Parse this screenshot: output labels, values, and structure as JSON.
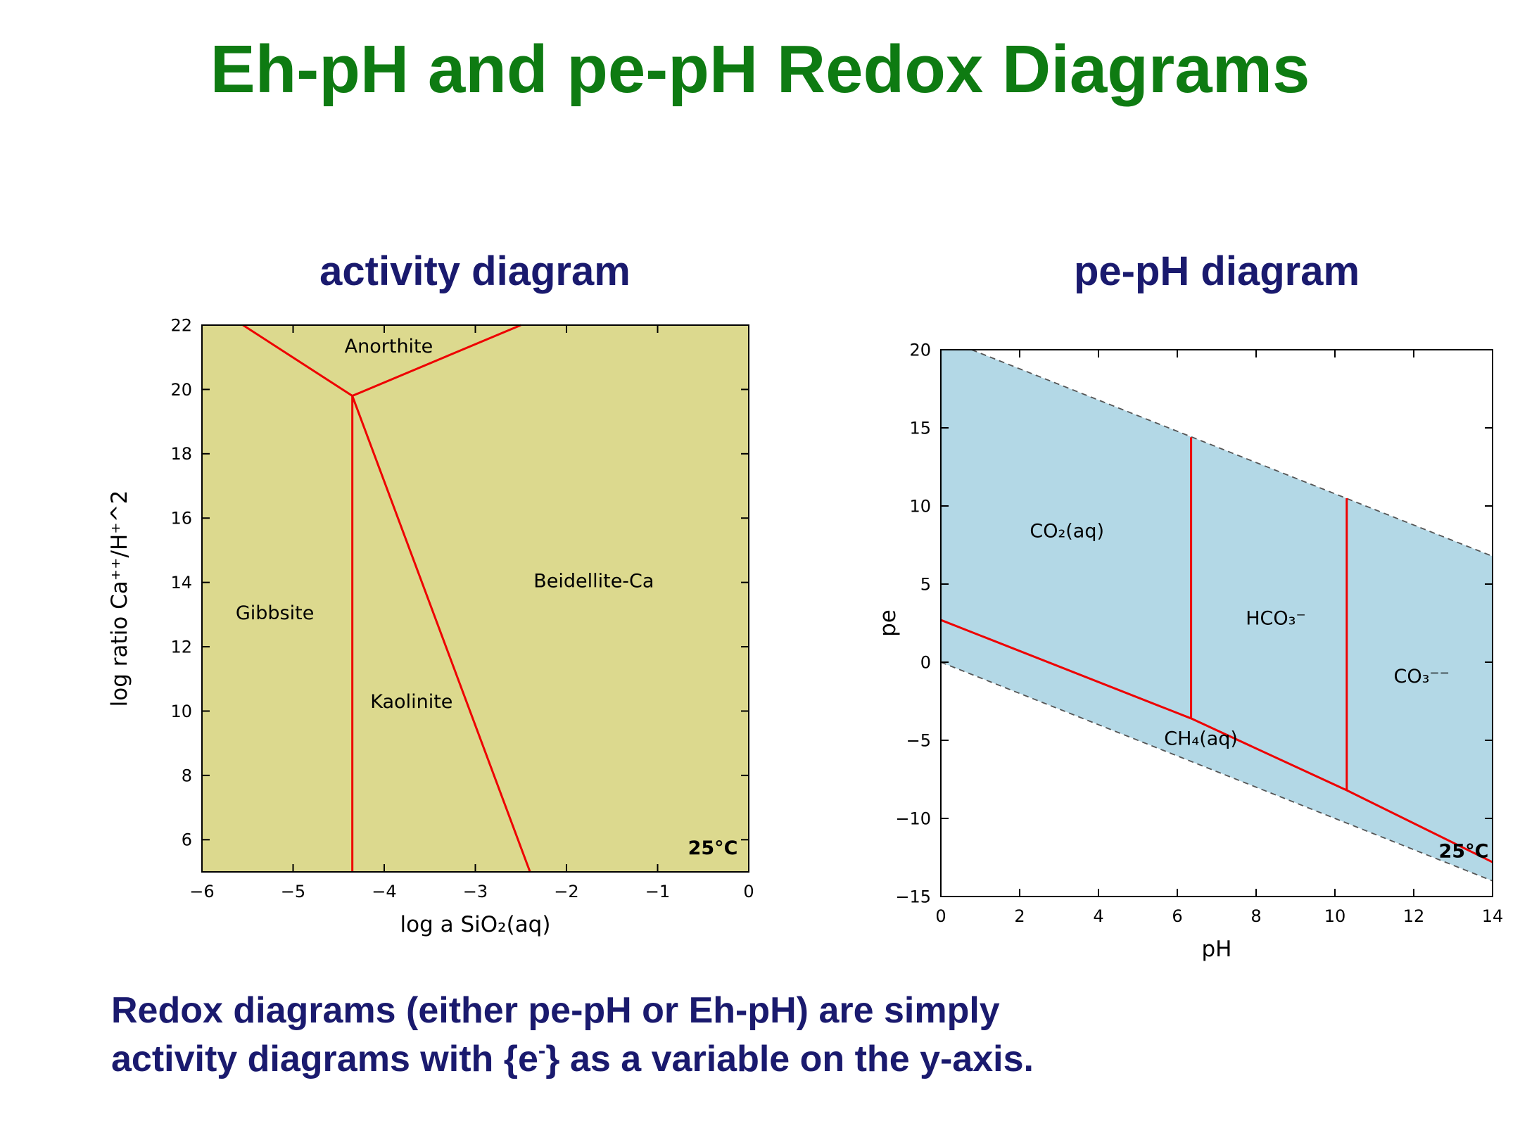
{
  "slide": {
    "title": "Eh-pH and pe-pH Redox Diagrams",
    "title_color": "#0e7b12",
    "text_color": "#1a1a6e",
    "caption_lines": [
      {
        "pre": "Redox diagrams (either pe-pH or Eh-pH) are simply",
        "sup": "",
        "post": ""
      },
      {
        "pre": "activity diagrams with {e",
        "sup": "-",
        "post": "} as a variable on the y-axis."
      }
    ]
  },
  "chart_data": [
    {
      "type": "line",
      "subtype": "mineral-activity-phase-diagram",
      "title": "activity diagram",
      "xlabel": "log a SiO₂(aq)",
      "ylabel": "log ratio Ca⁺⁺/H⁺^2",
      "xlim": [
        -6,
        0
      ],
      "ylim": [
        5,
        22
      ],
      "grid": false,
      "temperature_label": "25°C",
      "bg_color": "#dcd98e",
      "boundary_color": "#ee0000",
      "xticks": [
        {
          "v": -6,
          "label": "−6"
        },
        {
          "v": -5,
          "label": "−5"
        },
        {
          "v": -4,
          "label": "−4"
        },
        {
          "v": -3,
          "label": "−3"
        },
        {
          "v": -2,
          "label": "−2"
        },
        {
          "v": -1,
          "label": "−1"
        },
        {
          "v": 0,
          "label": "0"
        }
      ],
      "yticks": [
        {
          "v": 6,
          "label": "6"
        },
        {
          "v": 8,
          "label": "8"
        },
        {
          "v": 10,
          "label": "10"
        },
        {
          "v": 12,
          "label": "12"
        },
        {
          "v": 14,
          "label": "14"
        },
        {
          "v": 16,
          "label": "16"
        },
        {
          "v": 18,
          "label": "18"
        },
        {
          "v": 20,
          "label": "20"
        },
        {
          "v": 22,
          "label": "22"
        }
      ],
      "lines": [
        {
          "name": "gibbsite-anorthite-boundary",
          "color": "#ee0000",
          "width": 3,
          "points": [
            [
              -5.55,
              22
            ],
            [
              -4.35,
              19.8
            ]
          ]
        },
        {
          "name": "anorthite-beidellite-boundary",
          "color": "#ee0000",
          "width": 3,
          "points": [
            [
              -2.5,
              22
            ],
            [
              -4.35,
              19.8
            ]
          ]
        },
        {
          "name": "gibbsite-kaolinite-boundary",
          "color": "#ee0000",
          "width": 3,
          "points": [
            [
              -4.35,
              19.8
            ],
            [
              -4.35,
              5
            ]
          ]
        },
        {
          "name": "kaolinite-beidellite-boundary",
          "color": "#ee0000",
          "width": 3,
          "points": [
            [
              -4.35,
              19.8
            ],
            [
              -2.4,
              5
            ]
          ]
        }
      ],
      "labels": [
        {
          "text": "Anorthite",
          "x": -3.95,
          "y": 21.15,
          "anchor": "middle"
        },
        {
          "text": "Gibbsite",
          "x": -5.2,
          "y": 12.85,
          "anchor": "middle"
        },
        {
          "text": "Kaolinite",
          "x": -3.7,
          "y": 10.1,
          "anchor": "middle"
        },
        {
          "text": "Beidellite-Ca",
          "x": -1.7,
          "y": 13.85,
          "anchor": "middle"
        },
        {
          "text": "25°C",
          "x": -0.12,
          "y": 5.55,
          "anchor": "end",
          "bold": true
        }
      ]
    },
    {
      "type": "line",
      "subtype": "pe-pH-redox-diagram",
      "title": "pe-pH diagram",
      "xlabel": "pH",
      "ylabel": "pe",
      "xlim": [
        0,
        14
      ],
      "ylim": [
        -15,
        20
      ],
      "grid": false,
      "temperature_label": "25°C",
      "bg_color": "#ffffff",
      "water_field_color": "#b3d8e6",
      "boundary_color": "#ee0000",
      "xticks": [
        {
          "v": 0,
          "label": "0"
        },
        {
          "v": 2,
          "label": "2"
        },
        {
          "v": 4,
          "label": "4"
        },
        {
          "v": 6,
          "label": "6"
        },
        {
          "v": 8,
          "label": "8"
        },
        {
          "v": 10,
          "label": "10"
        },
        {
          "v": 12,
          "label": "12"
        },
        {
          "v": 14,
          "label": "14"
        }
      ],
      "yticks": [
        {
          "v": -15,
          "label": "−15"
        },
        {
          "v": -10,
          "label": "−10"
        },
        {
          "v": -5,
          "label": "−5"
        },
        {
          "v": 0,
          "label": "0"
        },
        {
          "v": 5,
          "label": "5"
        },
        {
          "v": 10,
          "label": "10"
        },
        {
          "v": 15,
          "label": "15"
        },
        {
          "v": 20,
          "label": "20"
        }
      ],
      "fills": [
        {
          "name": "water-stability-field",
          "color": "#b3d8e6",
          "points": [
            [
              0,
              0
            ],
            [
              0,
              20
            ],
            [
              0.78,
              20
            ],
            [
              14,
              6.78
            ],
            [
              14,
              -14
            ]
          ]
        }
      ],
      "lines": [
        {
          "name": "o2-h2o-stability-limit",
          "color": "#555555",
          "width": 1.8,
          "dash": "8 6",
          "points": [
            [
              0.78,
              20
            ],
            [
              14,
              6.78
            ]
          ]
        },
        {
          "name": "h2-h2o-stability-limit",
          "color": "#555555",
          "width": 1.8,
          "dash": "8 6",
          "points": [
            [
              0,
              0
            ],
            [
              14,
              -14
            ]
          ]
        },
        {
          "name": "co2-ch4-boundary",
          "color": "#ee0000",
          "width": 3,
          "points": [
            [
              0,
              2.7
            ],
            [
              6.35,
              -3.6
            ],
            [
              10.3,
              -8.2
            ],
            [
              14,
              -12.8
            ]
          ]
        },
        {
          "name": "co2-hco3-boundary",
          "color": "#ee0000",
          "width": 3,
          "points": [
            [
              6.35,
              14.4
            ],
            [
              6.35,
              -3.6
            ]
          ]
        },
        {
          "name": "hco3-co3-boundary",
          "color": "#ee0000",
          "width": 3,
          "points": [
            [
              10.3,
              10.5
            ],
            [
              10.3,
              -8.2
            ]
          ]
        }
      ],
      "labels": [
        {
          "text": "CO₂(aq)",
          "x": 3.2,
          "y": 8.0,
          "anchor": "middle"
        },
        {
          "text": "HCO₃⁻",
          "x": 8.5,
          "y": 2.4,
          "anchor": "middle"
        },
        {
          "text": "CO₃⁻⁻",
          "x": 12.2,
          "y": -1.3,
          "anchor": "middle"
        },
        {
          "text": "CH₄(aq)",
          "x": 6.6,
          "y": -5.3,
          "anchor": "middle"
        },
        {
          "text": "25°C",
          "x": 13.9,
          "y": -12.5,
          "anchor": "end",
          "bold": true
        }
      ]
    }
  ]
}
